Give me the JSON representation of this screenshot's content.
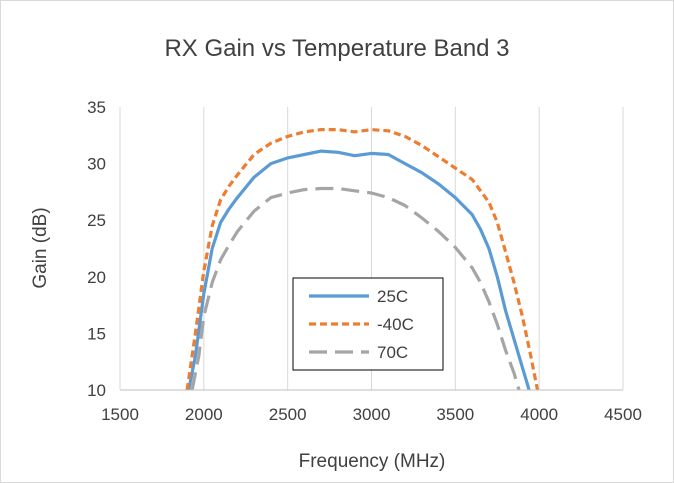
{
  "chart_data": {
    "type": "line",
    "title": "RX Gain vs Temperature Band 3",
    "xlabel": "Frequency (MHz)",
    "ylabel": "Gain (dB)",
    "xlim": [
      1500,
      4500
    ],
    "ylim": [
      10,
      35
    ],
    "xticks": [
      1500,
      2000,
      2500,
      3000,
      3500,
      4000,
      4500
    ],
    "yticks": [
      10,
      15,
      20,
      25,
      30,
      35
    ],
    "grid": "vertical",
    "legend_position": "inside-center-bottom",
    "series": [
      {
        "name": "25C",
        "color": "#5b9bd5",
        "dash": "solid",
        "x": [
          1910,
          1950,
          2000,
          2050,
          2100,
          2150,
          2200,
          2300,
          2400,
          2500,
          2600,
          2700,
          2800,
          2900,
          3000,
          3100,
          3200,
          3300,
          3400,
          3500,
          3600,
          3650,
          3700,
          3750,
          3800,
          3850,
          3900,
          3940
        ],
        "y": [
          10.0,
          13.0,
          18.5,
          22.5,
          24.8,
          26.0,
          27.0,
          28.8,
          30.0,
          30.5,
          30.8,
          31.1,
          31.0,
          30.7,
          30.9,
          30.8,
          30.0,
          29.2,
          28.2,
          27.0,
          25.5,
          24.2,
          22.5,
          20.0,
          17.0,
          14.5,
          12.0,
          10.0
        ]
      },
      {
        "name": "-40C",
        "color": "#ed7d31",
        "dash": "short-dash",
        "x": [
          1900,
          1950,
          2000,
          2050,
          2100,
          2150,
          2200,
          2300,
          2400,
          2500,
          2600,
          2700,
          2800,
          2900,
          3000,
          3100,
          3200,
          3300,
          3400,
          3500,
          3600,
          3700,
          3750,
          3800,
          3850,
          3900,
          3950,
          3990
        ],
        "y": [
          10.0,
          15.0,
          20.5,
          24.5,
          26.8,
          28.0,
          29.0,
          30.8,
          31.8,
          32.4,
          32.8,
          33.0,
          33.0,
          32.8,
          33.0,
          32.9,
          32.4,
          31.6,
          30.6,
          29.6,
          28.6,
          26.6,
          24.8,
          22.2,
          19.5,
          16.5,
          13.0,
          10.0
        ]
      },
      {
        "name": "70C",
        "color": "#a5a5a5",
        "dash": "long-dash",
        "x": [
          1930,
          1970,
          2000,
          2050,
          2100,
          2150,
          2200,
          2300,
          2400,
          2500,
          2600,
          2700,
          2800,
          2900,
          3000,
          3100,
          3200,
          3300,
          3400,
          3500,
          3600,
          3650,
          3700,
          3750,
          3800,
          3850,
          3880
        ],
        "y": [
          10.0,
          13.0,
          16.5,
          19.5,
          21.5,
          22.8,
          24.0,
          25.8,
          27.0,
          27.4,
          27.7,
          27.8,
          27.8,
          27.6,
          27.4,
          27.0,
          26.3,
          25.2,
          24.0,
          22.6,
          20.8,
          19.5,
          17.8,
          15.8,
          13.5,
          11.5,
          10.0
        ]
      }
    ]
  }
}
